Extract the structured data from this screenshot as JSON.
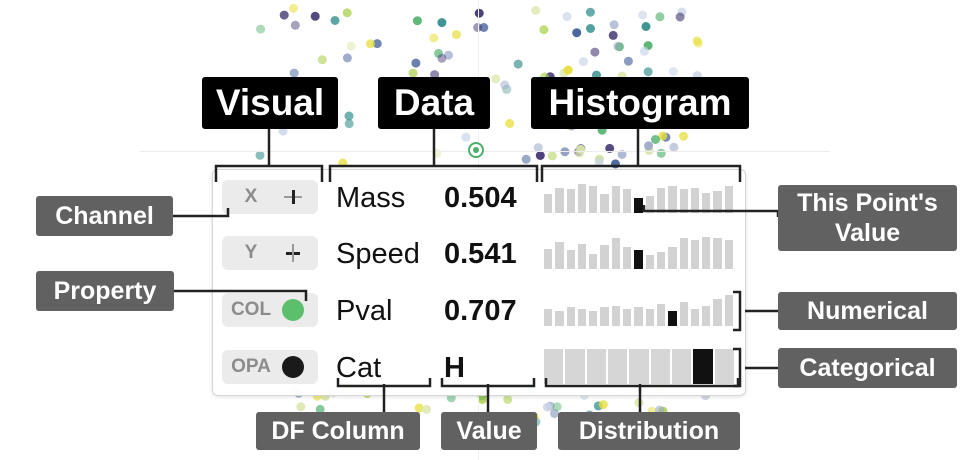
{
  "headers": {
    "visual": "Visual",
    "data": "Data",
    "histogram": "Histogram"
  },
  "rows": [
    {
      "channel": "X",
      "property": "Mass",
      "value": "0.504",
      "icon": "x-axis-icon"
    },
    {
      "channel": "Y",
      "property": "Speed",
      "value": "0.541",
      "icon": "y-axis-icon"
    },
    {
      "channel": "COL",
      "property": "Pval",
      "value": "0.707",
      "icon": "color-dot-icon",
      "color": "#5cbf6c"
    },
    {
      "channel": "OPA",
      "property": "Cat",
      "value": "H",
      "icon": "opacity-dot-icon",
      "color": "#1a1a1a"
    }
  ],
  "histograms": [
    {
      "values": [
        0.55,
        0.75,
        0.7,
        0.85,
        0.8,
        0.55,
        0.8,
        0.7,
        0.45,
        0.5,
        0.75,
        0.8,
        0.7,
        0.75,
        0.6,
        0.65,
        0.8
      ],
      "highlight": 8
    },
    {
      "values": [
        0.6,
        0.8,
        0.55,
        0.75,
        0.45,
        0.7,
        0.9,
        0.65,
        0.55,
        0.4,
        0.5,
        0.65,
        0.9,
        0.85,
        0.95,
        0.9,
        0.85
      ],
      "highlight": 8
    },
    {
      "values": [
        0.5,
        0.45,
        0.55,
        0.5,
        0.45,
        0.55,
        0.6,
        0.5,
        0.55,
        0.5,
        0.65,
        0.45,
        0.7,
        0.5,
        0.6,
        0.8,
        0.9
      ],
      "highlight": 11
    }
  ],
  "categorical": {
    "segments": 9,
    "highlight": 7
  },
  "labels": {
    "channel": "Channel",
    "property": "Property",
    "df_column": "DF Column",
    "value": "Value",
    "distribution": "Distribution",
    "this_point_line1": "This Point's",
    "this_point_line2": "Value",
    "numerical": "Numerical",
    "categorical": "Categorical"
  },
  "colors": {
    "accent_green": "#5cbf6c",
    "header_bg": "#000000",
    "label_bg": "#616161",
    "scatter_palette": [
      "#3b2f6e",
      "#3d5a96",
      "#2e8b8a",
      "#4caf6a",
      "#a8cf4a",
      "#e6df3c",
      "#c9d4e8",
      "#d9e6a8",
      "#9ba8c8"
    ]
  }
}
